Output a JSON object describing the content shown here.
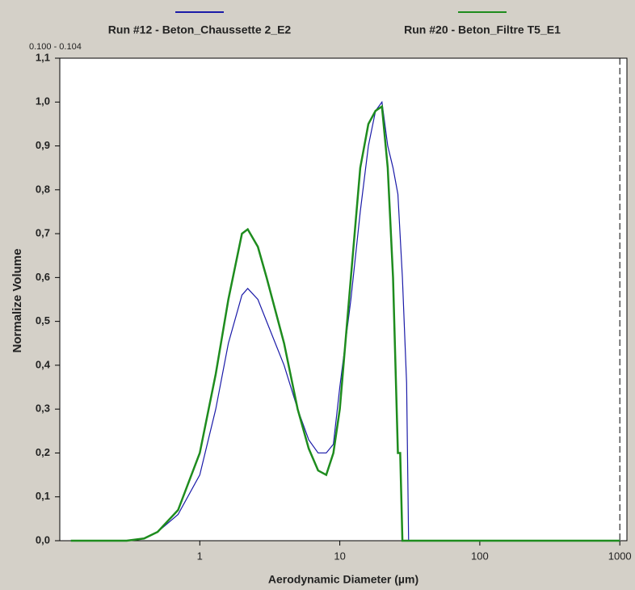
{
  "chart_data": {
    "type": "line",
    "range_label": "0.100 - 0.104",
    "x_label": "Aerodynamic Diameter (µm)",
    "y_label": "Normalize Volume",
    "xscale": "log",
    "xlim": [
      0.1,
      1124
    ],
    "ylim": [
      0,
      1.1
    ],
    "xticks": [
      1,
      10,
      100,
      1000
    ],
    "yticks": [
      {
        "value": 0,
        "label": "0,0"
      },
      {
        "value": 0.1,
        "label": "0,1"
      },
      {
        "value": 0.2,
        "label": "0,2"
      },
      {
        "value": 0.3,
        "label": "0,3"
      },
      {
        "value": 0.4,
        "label": "0,4"
      },
      {
        "value": 0.5,
        "label": "0,5"
      },
      {
        "value": 0.6,
        "label": "0,6"
      },
      {
        "value": 0.7,
        "label": "0,7"
      },
      {
        "value": 0.8,
        "label": "0,8"
      },
      {
        "value": 0.9,
        "label": "0,9"
      },
      {
        "value": 1,
        "label": "1,0"
      },
      {
        "value": 1.1,
        "label": "1,1"
      }
    ],
    "reference_line_x": 1000,
    "series": [
      {
        "name": "Run #12 - Beton_Chaussette 2_E2",
        "color": "#1a1aa8",
        "x": [
          0.12,
          0.3,
          0.4,
          0.5,
          0.7,
          1,
          1.3,
          1.6,
          2,
          2.2,
          2.6,
          3,
          4,
          5,
          6,
          7,
          8,
          9,
          10,
          12,
          14,
          16,
          18,
          20,
          22,
          24,
          26,
          28,
          30,
          31,
          100,
          1000
        ],
        "values": [
          0,
          0,
          0.005,
          0.02,
          0.06,
          0.15,
          0.3,
          0.45,
          0.56,
          0.575,
          0.55,
          0.5,
          0.4,
          0.3,
          0.23,
          0.2,
          0.2,
          0.22,
          0.35,
          0.55,
          0.75,
          0.9,
          0.98,
          1.0,
          0.9,
          0.85,
          0.79,
          0.6,
          0.36,
          0,
          0,
          0
        ]
      },
      {
        "name": "Run #20 - Beton_Filtre T5_E1",
        "color": "#1e8c1e",
        "x": [
          0.12,
          0.3,
          0.4,
          0.5,
          0.7,
          1,
          1.3,
          1.6,
          2,
          2.2,
          2.6,
          3,
          4,
          5,
          6,
          7,
          8,
          9,
          10,
          12,
          14,
          16,
          18,
          20,
          22,
          24,
          26,
          27,
          28,
          100,
          1000
        ],
        "values": [
          0,
          0,
          0.005,
          0.02,
          0.07,
          0.2,
          0.38,
          0.55,
          0.7,
          0.71,
          0.67,
          0.6,
          0.45,
          0.3,
          0.21,
          0.16,
          0.15,
          0.2,
          0.3,
          0.6,
          0.85,
          0.95,
          0.98,
          0.99,
          0.85,
          0.6,
          0.2,
          0.2,
          0,
          0,
          0
        ]
      }
    ]
  }
}
